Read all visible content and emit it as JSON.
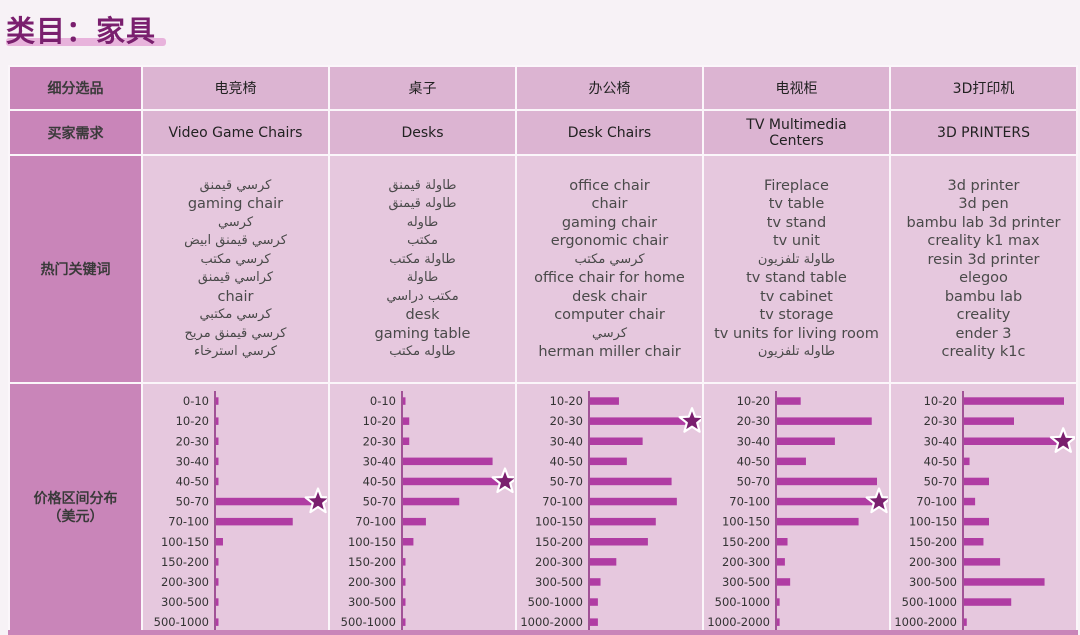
{
  "title": "类目：家具",
  "colors": {
    "accent": "#7a1f6e",
    "bar": "#b03ca3",
    "star": "#7a1f6e",
    "header_bg": "#c985b9",
    "cell_bg": "#e6c8de"
  },
  "row_labels": {
    "subcategory": "细分选品",
    "buyer_need": "买家需求",
    "keywords": "热门关键词",
    "price": "价格区间分布\n（美元）"
  },
  "columns": [
    {
      "subcategory": "电竞椅",
      "buyer_need": "Video Game Chairs",
      "keywords": [
        "كرسي قيمنق",
        "gaming chair",
        "كرسي",
        "كرسي قيمنق ابيض",
        "كرسي مكتب",
        "كراسي قيمنق",
        "chair",
        "كرسي مكتبي",
        "كرسي قيمنق مريح",
        "كرسي استرخاء"
      ]
    },
    {
      "subcategory": "桌子",
      "buyer_need": "Desks",
      "keywords": [
        "طاولة قيمنق",
        "طاوله قيمنق",
        "طاوله",
        "مكتب",
        "طاولة مكتب",
        "طاولة",
        "مكتب دراسي",
        "desk",
        "gaming table",
        "طاوله مكتب"
      ]
    },
    {
      "subcategory": "办公椅",
      "buyer_need": "Desk Chairs",
      "keywords": [
        "office chair",
        "chair",
        "gaming chair",
        "ergonomic chair",
        "كرسي مكتب",
        "office chair for home",
        "desk chair",
        "computer chair",
        "كرسي",
        "herman miller chair"
      ]
    },
    {
      "subcategory": "电视柜",
      "buyer_need": "TV Multimedia Centers",
      "keywords": [
        "Fireplace",
        "tv table",
        "tv stand",
        "tv unit",
        "طاولة تلفزيون",
        "tv stand table",
        "tv cabinet",
        "tv storage",
        "tv units for living room",
        "طاوله تلفزيون"
      ]
    },
    {
      "subcategory": "3D打印机",
      "buyer_need": "3D PRINTERS",
      "keywords": [
        "3d printer",
        "3d pen",
        "bambu lab 3d printer",
        "creality k1 max",
        "resin 3d printer",
        "elegoo",
        "bambu lab",
        "creality",
        "ender 3",
        "creality k1c"
      ]
    }
  ],
  "chart_data": [
    {
      "type": "bar",
      "orientation": "horizontal",
      "categories": [
        "0-10",
        "10-20",
        "20-30",
        "30-40",
        "40-50",
        "50-70",
        "70-100",
        "100-150",
        "150-200",
        "200-300",
        "300-500",
        "500-1000"
      ],
      "values": [
        1,
        1,
        1,
        1,
        1,
        43,
        33,
        3,
        1,
        1,
        1,
        1
      ],
      "highlight": "50-70"
    },
    {
      "type": "bar",
      "orientation": "horizontal",
      "categories": [
        "0-10",
        "10-20",
        "20-30",
        "30-40",
        "40-50",
        "50-70",
        "70-100",
        "100-150",
        "150-200",
        "200-300",
        "300-500",
        "500-1000"
      ],
      "values": [
        1,
        3,
        3,
        43,
        48,
        27,
        11,
        5,
        1,
        1,
        1,
        1
      ],
      "highlight": "40-50"
    },
    {
      "type": "bar",
      "orientation": "horizontal",
      "categories": [
        "10-20",
        "20-30",
        "30-40",
        "40-50",
        "50-70",
        "70-100",
        "100-150",
        "150-200",
        "200-300",
        "300-500",
        "500-1000",
        "1000-2000"
      ],
      "values": [
        11,
        38,
        20,
        14,
        31,
        33,
        25,
        22,
        10,
        4,
        3,
        3
      ],
      "highlight": "20-30"
    },
    {
      "type": "bar",
      "orientation": "horizontal",
      "categories": [
        "10-20",
        "20-30",
        "30-40",
        "40-50",
        "50-70",
        "70-100",
        "100-150",
        "150-200",
        "200-300",
        "300-500",
        "500-1000",
        "1000-2000"
      ],
      "values": [
        9,
        36,
        22,
        11,
        38,
        38,
        31,
        4,
        3,
        5,
        1,
        1
      ],
      "highlight": "70-100"
    },
    {
      "type": "bar",
      "orientation": "horizontal",
      "categories": [
        "10-20",
        "20-30",
        "30-40",
        "40-50",
        "50-70",
        "70-100",
        "100-150",
        "150-200",
        "200-300",
        "300-500",
        "500-1000",
        "1000-2000"
      ],
      "values": [
        36,
        18,
        35,
        2,
        9,
        4,
        9,
        7,
        13,
        29,
        17,
        1
      ],
      "highlight": "30-40"
    }
  ]
}
